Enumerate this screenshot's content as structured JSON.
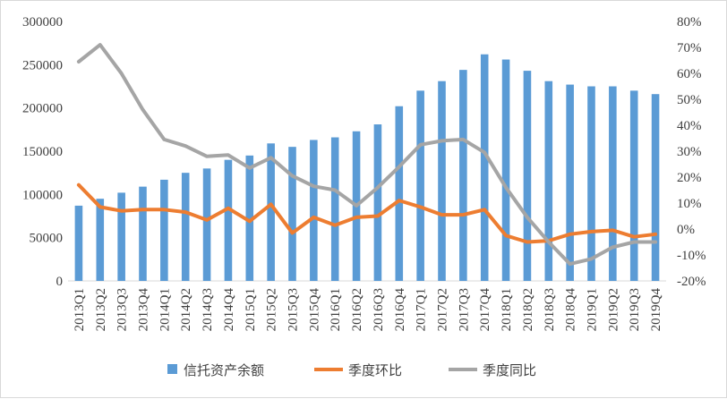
{
  "chart_data": {
    "type": "bar",
    "title": "",
    "categories": [
      "2013Q1",
      "2013Q2",
      "2013Q3",
      "2013Q4",
      "2014Q1",
      "2014Q2",
      "2014Q3",
      "2014Q4",
      "2015Q1",
      "2015Q2",
      "2015Q3",
      "2015Q4",
      "2016Q1",
      "2016Q2",
      "2016Q3",
      "2016Q4",
      "2017Q1",
      "2017Q2",
      "2017Q3",
      "2017Q4",
      "2018Q1",
      "2018Q2",
      "2018Q3",
      "2018Q4",
      "2019Q1",
      "2019Q2",
      "2019Q3",
      "2019Q4"
    ],
    "y_left": {
      "min": 0,
      "max": 300000,
      "step": 50000,
      "ticks": [
        "0",
        "50000",
        "100000",
        "150000",
        "200000",
        "250000",
        "300000"
      ]
    },
    "y_right": {
      "min": -20,
      "max": 80,
      "step": 10,
      "unit": "%",
      "ticks": [
        "-20%",
        "-10%",
        "0%",
        "10%",
        "20%",
        "30%",
        "40%",
        "50%",
        "60%",
        "70%",
        "80%"
      ]
    },
    "grid": false,
    "legend_position": "bottom",
    "series": [
      {
        "name": "信托资产余额",
        "type": "bar",
        "axis": "left",
        "color": "#5b9bd5",
        "values": [
          87000,
          95000,
          102000,
          109000,
          117000,
          125000,
          130000,
          140000,
          145000,
          159000,
          155000,
          163000,
          166000,
          173000,
          181000,
          202000,
          220000,
          231000,
          244000,
          262000,
          256000,
          243000,
          231000,
          227000,
          225000,
          225000,
          220000,
          216000
        ]
      },
      {
        "name": "季度环比",
        "type": "line",
        "axis": "right",
        "color": "#ed7d31",
        "values": [
          17,
          8.5,
          7,
          7.5,
          7.5,
          6.5,
          3.5,
          8,
          3,
          9.5,
          -1.5,
          4.5,
          1.5,
          4.5,
          5,
          11,
          8.5,
          5.5,
          5.5,
          7.5,
          -2.5,
          -5,
          -4.5,
          -2,
          -1,
          -0.5,
          -3,
          -2
        ]
      },
      {
        "name": "季度同比",
        "type": "line",
        "axis": "right",
        "color": "#a5a5a5",
        "values": [
          64.5,
          71,
          60,
          46,
          34.5,
          32,
          28,
          28.5,
          23.5,
          27.5,
          20.5,
          16.5,
          15,
          9,
          16,
          24,
          32.5,
          34,
          34.5,
          29.5,
          16,
          4.5,
          -5,
          -13.5,
          -11.5,
          -7,
          -5,
          -5
        ]
      }
    ]
  }
}
